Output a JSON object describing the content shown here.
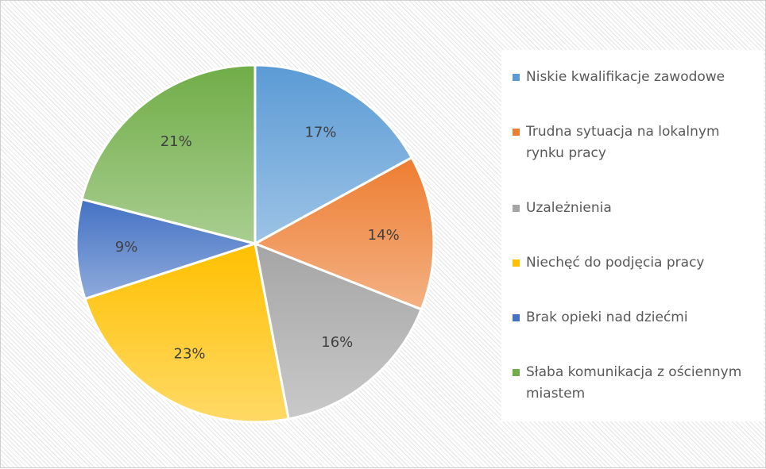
{
  "chart_data": {
    "type": "pie",
    "categories": [
      "Niskie kwalifikacje zawodowe",
      "Trudna sytuacja na lokalnym rynku pracy",
      "Uzależnienia",
      "Niechęć do podjęcia pracy",
      "Brak opieki nad dziećmi",
      "Słaba komunikacja z ościennym miastem"
    ],
    "values": [
      17,
      14,
      16,
      23,
      9,
      21
    ],
    "value_labels": [
      "17%",
      "14%",
      "16%",
      "23%",
      "9%",
      "21%"
    ],
    "colors": [
      "#5b9bd5",
      "#ed7d31",
      "#a5a5a5",
      "#ffc000",
      "#4472c4",
      "#70ad47"
    ],
    "legend": "right"
  }
}
